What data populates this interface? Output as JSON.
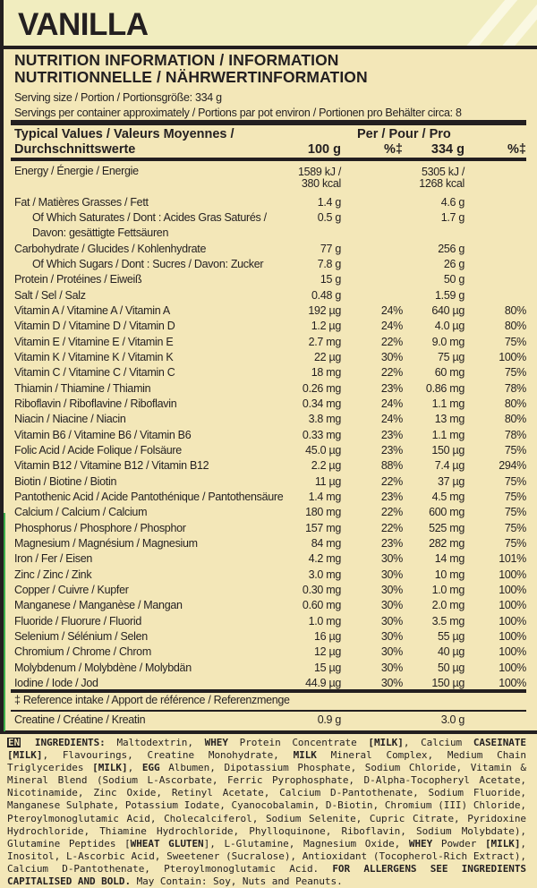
{
  "flavour": "VANILLA",
  "nutrition_title_line1": "NUTRITION INFORMATION / INFORMATION",
  "nutrition_title_line2": "NUTRITIONNELLE / NÄHRWERTINFORMATION",
  "serving_size": "Serving size / Portion / Portionsgröße: 334 g",
  "servings_per_container": "Servings per container approximately / Portions par pot environ / Portionen pro Behälter circa: 8",
  "header": {
    "typical_line1": "Typical Values / Valeurs Moyennes /",
    "typical_line2": "Durchschnittswerte",
    "per": "Per / Pour / Pro",
    "col1": "100 g",
    "col2": "%‡",
    "col3": "334 g",
    "col4": "%‡"
  },
  "energy": {
    "label": "Energy / Énergie / Energie",
    "v100_kj": "1589 kJ /",
    "v100_kcal": "380 kcal",
    "vserv_kj": "5305 kJ /",
    "vserv_kcal": "1268 kcal"
  },
  "rows": [
    {
      "label": "Fat / Matières Grasses / Fett",
      "v100": "1.4 g",
      "p100": "",
      "vserv": "4.6 g",
      "pserv": ""
    },
    {
      "label": "Of Which Saturates / Dont : Acides Gras Saturés /",
      "label2": "Davon: gesättigte Fettsäuren",
      "indent": true,
      "v100": "0.5 g",
      "p100": "",
      "vserv": "1.7 g",
      "pserv": ""
    },
    {
      "label": "Carbohydrate / Glucides / Kohlenhydrate",
      "v100": "77 g",
      "p100": "",
      "vserv": "256 g",
      "pserv": ""
    },
    {
      "label": "Of Which Sugars / Dont : Sucres / Davon: Zucker",
      "indent": true,
      "v100": "7.8 g",
      "p100": "",
      "vserv": "26 g",
      "pserv": ""
    },
    {
      "label": "Protein / Protéines / Eiweiß",
      "v100": "15 g",
      "p100": "",
      "vserv": "50 g",
      "pserv": ""
    },
    {
      "label": "Salt / Sel / Salz",
      "v100": "0.48 g",
      "p100": "",
      "vserv": "1.59 g",
      "pserv": ""
    },
    {
      "label": "Vitamin A / Vitamine A / Vitamin A",
      "v100": "192 µg",
      "p100": "24%",
      "vserv": "640 µg",
      "pserv": "80%"
    },
    {
      "label": "Vitamin D / Vitamine D / Vitamin D",
      "v100": "1.2 µg",
      "p100": "24%",
      "vserv": "4.0 µg",
      "pserv": "80%"
    },
    {
      "label": "Vitamin E / Vitamine E / Vitamin E",
      "v100": "2.7 mg",
      "p100": "22%",
      "vserv": "9.0 mg",
      "pserv": "75%"
    },
    {
      "label": "Vitamin K / Vitamine K / Vitamin K",
      "v100": "22 µg",
      "p100": "30%",
      "vserv": "75 µg",
      "pserv": "100%"
    },
    {
      "label": "Vitamin C / Vitamine C / Vitamin C",
      "v100": "18 mg",
      "p100": "22%",
      "vserv": "60 mg",
      "pserv": "75%"
    },
    {
      "label": "Thiamin / Thiamine / Thiamin",
      "v100": "0.26 mg",
      "p100": "23%",
      "vserv": "0.86 mg",
      "pserv": "78%"
    },
    {
      "label": "Riboflavin / Riboflavine / Riboflavin",
      "v100": "0.34 mg",
      "p100": "24%",
      "vserv": "1.1 mg",
      "pserv": "80%"
    },
    {
      "label": "Niacin / Niacine / Niacin",
      "v100": "3.8 mg",
      "p100": "24%",
      "vserv": "13 mg",
      "pserv": "80%"
    },
    {
      "label": "Vitamin B6 / Vitamine B6 / Vitamin B6",
      "v100": "0.33 mg",
      "p100": "23%",
      "vserv": "1.1 mg",
      "pserv": "78%"
    },
    {
      "label": "Folic Acid / Acide Folique / Folsäure",
      "v100": "45.0 µg",
      "p100": "23%",
      "vserv": "150 µg",
      "pserv": "75%"
    },
    {
      "label": "Vitamin B12 / Vitamine B12 / Vitamin B12",
      "v100": "2.2 µg",
      "p100": "88%",
      "vserv": "7.4 µg",
      "pserv": "294%"
    },
    {
      "label": "Biotin / Biotine / Biotin",
      "v100": "11 µg",
      "p100": "22%",
      "vserv": "37 µg",
      "pserv": "75%"
    },
    {
      "label": "Pantothenic Acid / Acide Pantothénique / Pantothensäure",
      "v100": "1.4 mg",
      "p100": "23%",
      "vserv": "4.5 mg",
      "pserv": "75%"
    },
    {
      "label": "Calcium / Calcium / Calcium",
      "v100": "180 mg",
      "p100": "22%",
      "vserv": "600 mg",
      "pserv": "75%"
    },
    {
      "label": "Phosphorus / Phosphore / Phosphor",
      "v100": "157 mg",
      "p100": "22%",
      "vserv": "525 mg",
      "pserv": "75%"
    },
    {
      "label": "Magnesium / Magnésium / Magnesium",
      "v100": "84 mg",
      "p100": "23%",
      "vserv": "282 mg",
      "pserv": "75%"
    },
    {
      "label": "Iron / Fer / Eisen",
      "v100": "4.2 mg",
      "p100": "30%",
      "vserv": "14 mg",
      "pserv": "101%"
    },
    {
      "label": "Zinc / Zinc / Zink",
      "v100": "3.0 mg",
      "p100": "30%",
      "vserv": "10 mg",
      "pserv": "100%"
    },
    {
      "label": "Copper / Cuivre / Kupfer",
      "v100": "0.30 mg",
      "p100": "30%",
      "vserv": "1.0 mg",
      "pserv": "100%"
    },
    {
      "label": "Manganese / Manganèse / Mangan",
      "v100": "0.60 mg",
      "p100": "30%",
      "vserv": "2.0 mg",
      "pserv": "100%"
    },
    {
      "label": "Fluoride / Fluorure / Fluorid",
      "v100": "1.0 mg",
      "p100": "30%",
      "vserv": "3.5 mg",
      "pserv": "100%"
    },
    {
      "label": "Selenium / Sélénium / Selen",
      "v100": "16 µg",
      "p100": "30%",
      "vserv": "55 µg",
      "pserv": "100%"
    },
    {
      "label": "Chromium / Chrome / Chrom",
      "v100": "12 µg",
      "p100": "30%",
      "vserv": "40 µg",
      "pserv": "100%"
    },
    {
      "label": "Molybdenum / Molybdène / Molybdän",
      "v100": "15 µg",
      "p100": "30%",
      "vserv": "50 µg",
      "pserv": "100%"
    },
    {
      "label": "Iodine / Iode / Jod",
      "v100": "44.9 µg",
      "p100": "30%",
      "vserv": "150 µg",
      "pserv": "100%"
    }
  ],
  "reference_note": "‡ Reference intake / Apport de référence / Referenzmenge",
  "creatine": {
    "label": "Creatine / Créatine / Kreatin",
    "v100": "0.9 g",
    "vserv": "3.0 g"
  },
  "ingredients": {
    "lang_badge": "EN",
    "parts": [
      {
        "t": "INGREDIENTS:",
        "b": true
      },
      {
        "t": " Maltodextrin, "
      },
      {
        "t": "WHEY",
        "b": true
      },
      {
        "t": " Protein Concentrate "
      },
      {
        "t": "[MILK]",
        "b": true
      },
      {
        "t": ", Calcium "
      },
      {
        "t": "CASEINATE [MILK]",
        "b": true
      },
      {
        "t": ", Flavourings, Creatine Monohydrate, "
      },
      {
        "t": "MILK",
        "b": true
      },
      {
        "t": " Mineral Complex, Medium Chain Triglycerides "
      },
      {
        "t": "[MILK]",
        "b": true
      },
      {
        "t": ", "
      },
      {
        "t": "EGG",
        "b": true
      },
      {
        "t": " Albumen, Dipotassium Phosphate, Sodium Chloride, Vitamin & Mineral Blend (Sodium L-Ascorbate, Ferric Pyrophosphate, D-Alpha-Tocopheryl Acetate, Nicotinamide, Zinc Oxide, Retinyl Acetate, Calcium D-Pantothenate, Sodium Fluoride, Manganese Sulphate, Potassium Iodate, Cyanocobalamin, D-Biotin, Chromium (III) Chloride, Pteroylmonoglutamic Acid, Cholecalciferol, Sodium Selenite, Cupric Citrate, Pyridoxine Hydrochloride, Thiamine Hydrochloride, Phylloquinone, Riboflavin, Sodium Molybdate), Glutamine Peptides ["
      },
      {
        "t": "WHEAT GLUTEN",
        "b": true
      },
      {
        "t": "], L-Glutamine, Magnesium Oxide, "
      },
      {
        "t": "WHEY",
        "b": true
      },
      {
        "t": " Powder "
      },
      {
        "t": "[MILK]",
        "b": true
      },
      {
        "t": ", Inositol, L-Ascorbic Acid, Sweetener (Sucralose), Antioxidant (Tocopherol-Rich Extract), Calcium D-Pantothenate, Pteroylmonoglutamic Acid. "
      },
      {
        "t": "FOR ALLERGENS SEE INGREDIENTS CAPITALISED AND BOLD.",
        "b": true
      },
      {
        "t": " May Contain: Soy, Nuts and Peanuts."
      }
    ]
  },
  "colors": {
    "background": "#f3e7b8",
    "title_bar": "#f1edbf",
    "text": "#231f20",
    "accent_line": "#3fae49"
  }
}
